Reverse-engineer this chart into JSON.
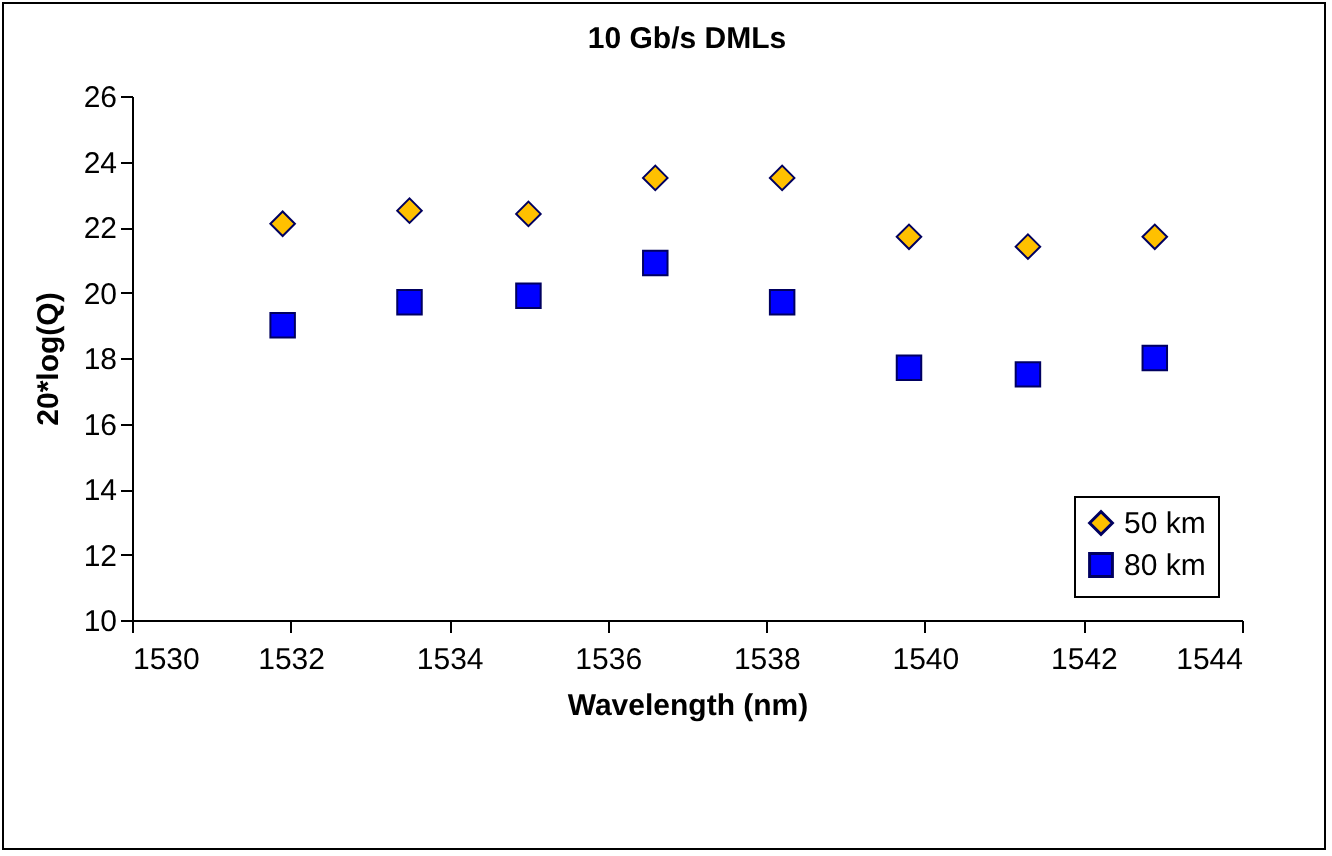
{
  "chart_data": {
    "type": "scatter",
    "title": "10 Gb/s DMLs",
    "xlabel": "Wavelength (nm)",
    "ylabel": "20*log(Q)",
    "x": [
      1531.9,
      1533.5,
      1535.0,
      1536.6,
      1538.2,
      1539.8,
      1541.3,
      1542.9
    ],
    "series": [
      {
        "name": "50 km",
        "color": "#ffc000",
        "marker": "diamond",
        "values": [
          22.1,
          22.5,
          22.4,
          23.5,
          23.5,
          21.7,
          21.4,
          21.7
        ]
      },
      {
        "name": "80 km",
        "color": "#0000ff",
        "marker": "square",
        "values": [
          19.0,
          19.7,
          19.9,
          20.9,
          19.7,
          17.7,
          17.5,
          18.0
        ]
      }
    ],
    "xlim": [
      1530,
      1544
    ],
    "xticks": [
      1530,
      1532,
      1534,
      1536,
      1538,
      1540,
      1542,
      1544
    ],
    "ylim": [
      10,
      26
    ],
    "yticks": [
      10,
      12,
      14,
      16,
      18,
      20,
      22,
      24,
      26
    ],
    "grid": false,
    "legend": "bottom right"
  }
}
